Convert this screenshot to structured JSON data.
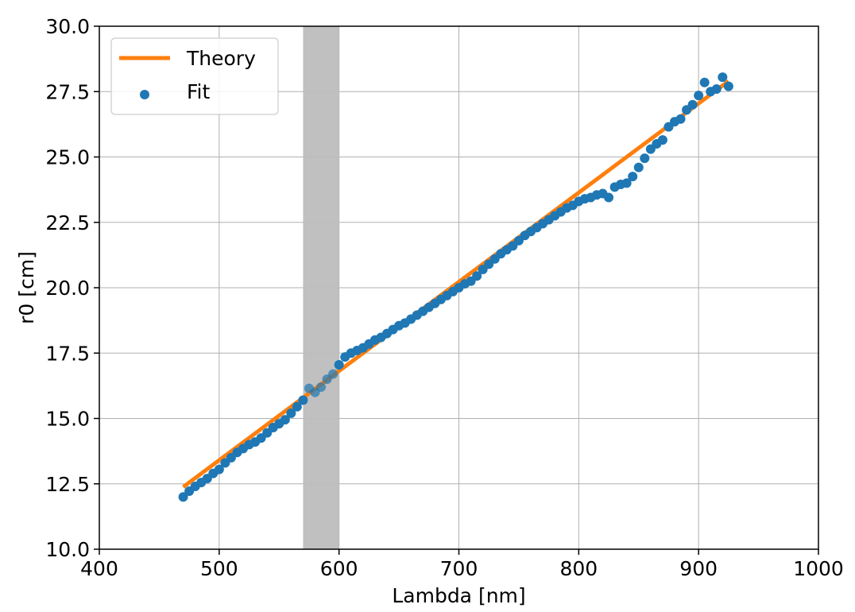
{
  "chart_data": {
    "type": "scatter",
    "xlabel": "Lambda [nm]",
    "ylabel": "r0 [cm]",
    "xlim": [
      400,
      1000
    ],
    "ylim": [
      10.0,
      30.0
    ],
    "xticks": [
      400,
      500,
      600,
      700,
      800,
      900,
      1000
    ],
    "xtick_labels": [
      "400",
      "500",
      "600",
      "700",
      "800",
      "900",
      "1000"
    ],
    "yticks": [
      10.0,
      12.5,
      15.0,
      17.5,
      20.0,
      22.5,
      25.0,
      27.5,
      30.0
    ],
    "ytick_labels": [
      "10.0",
      "12.5",
      "15.0",
      "17.5",
      "20.0",
      "22.5",
      "25.0",
      "27.5",
      "30.0"
    ],
    "grid": true,
    "legend_position": "top-left",
    "shaded_region": {
      "x_start": 570,
      "x_end": 600,
      "color": "#bdbdbd"
    },
    "series": [
      {
        "name": "Theory",
        "kind": "line",
        "color": "#ff7f0e",
        "x": [
          470,
          925
        ],
        "y": [
          12.38,
          27.9
        ]
      },
      {
        "name": "Fit",
        "kind": "scatter",
        "color": "#1f77b4",
        "x": [
          470,
          475,
          480,
          485,
          490,
          495,
          500,
          505,
          510,
          515,
          520,
          525,
          530,
          535,
          540,
          545,
          550,
          555,
          560,
          565,
          570,
          575,
          580,
          585,
          590,
          595,
          600,
          605,
          610,
          615,
          620,
          625,
          630,
          635,
          640,
          645,
          650,
          655,
          660,
          665,
          670,
          675,
          680,
          685,
          690,
          695,
          700,
          705,
          710,
          715,
          720,
          725,
          730,
          735,
          740,
          745,
          750,
          755,
          760,
          765,
          770,
          775,
          780,
          785,
          790,
          795,
          800,
          805,
          810,
          815,
          820,
          825,
          830,
          835,
          840,
          845,
          850,
          855,
          860,
          865,
          870,
          875,
          880,
          885,
          890,
          895,
          900,
          905,
          910,
          915,
          920,
          925
        ],
        "y": [
          12.0,
          12.22,
          12.4,
          12.55,
          12.7,
          12.9,
          13.05,
          13.3,
          13.5,
          13.7,
          13.85,
          14.0,
          14.1,
          14.25,
          14.45,
          14.65,
          14.8,
          14.95,
          15.2,
          15.45,
          15.7,
          16.15,
          16.0,
          16.2,
          16.5,
          16.7,
          17.05,
          17.35,
          17.5,
          17.6,
          17.7,
          17.85,
          18.0,
          18.1,
          18.25,
          18.4,
          18.55,
          18.65,
          18.8,
          18.95,
          19.1,
          19.25,
          19.4,
          19.55,
          19.7,
          19.85,
          20.0,
          20.15,
          20.25,
          20.45,
          20.7,
          20.9,
          21.1,
          21.3,
          21.45,
          21.6,
          21.8,
          22.0,
          22.15,
          22.3,
          22.45,
          22.6,
          22.75,
          22.9,
          23.05,
          23.15,
          23.3,
          23.4,
          23.45,
          23.55,
          23.6,
          23.45,
          23.85,
          23.95,
          24.0,
          24.25,
          24.6,
          24.95,
          25.3,
          25.5,
          25.65,
          26.15,
          26.35,
          26.45,
          26.8,
          27.0,
          27.35,
          27.85,
          27.5,
          27.6,
          28.05,
          27.7
        ]
      }
    ]
  }
}
